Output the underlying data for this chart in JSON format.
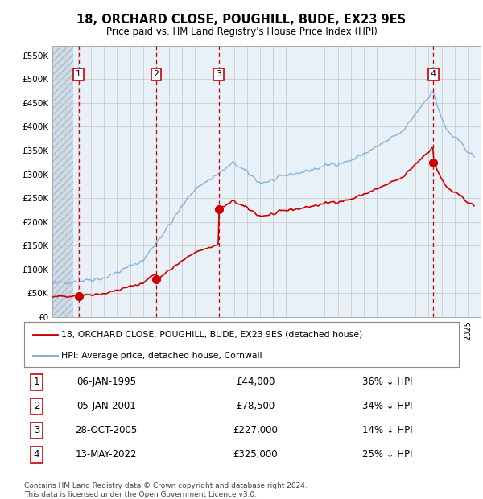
{
  "title": "18, ORCHARD CLOSE, POUGHILL, BUDE, EX23 9ES",
  "subtitle": "Price paid vs. HM Land Registry's House Price Index (HPI)",
  "ylabel_ticks": [
    "£0",
    "£50K",
    "£100K",
    "£150K",
    "£200K",
    "£250K",
    "£300K",
    "£350K",
    "£400K",
    "£450K",
    "£500K",
    "£550K"
  ],
  "ylim": [
    0,
    570000
  ],
  "xlim_start": 1993.0,
  "xlim_end": 2026.0,
  "sales": [
    {
      "num": 1,
      "date": "1995-01-06",
      "price": 44000,
      "pct": 36,
      "x": 1995.03
    },
    {
      "num": 2,
      "date": "2001-01-05",
      "price": 78500,
      "pct": 34,
      "x": 2001.01
    },
    {
      "num": 3,
      "date": "2005-10-28",
      "price": 227000,
      "pct": 14,
      "x": 2005.82
    },
    {
      "num": 4,
      "date": "2022-05-13",
      "price": 325000,
      "pct": 25,
      "x": 2022.37
    }
  ],
  "hpi_color": "#7aadd4",
  "sale_color": "#cc0000",
  "vline_color": "#cc0000",
  "grid_color": "#cccccc",
  "plot_bg": "#e8f0f8",
  "hatch_bg": "#d0dce8",
  "legend_label_sale": "18, ORCHARD CLOSE, POUGHILL, BUDE, EX23 9ES (detached house)",
  "legend_label_hpi": "HPI: Average price, detached house, Cornwall",
  "footer": "Contains HM Land Registry data © Crown copyright and database right 2024.\nThis data is licensed under the Open Government Licence v3.0.",
  "table_rows": [
    {
      "num": 1,
      "date": "06-JAN-1995",
      "price": "£44,000",
      "pct": "36% ↓ HPI"
    },
    {
      "num": 2,
      "date": "05-JAN-2001",
      "price": "£78,500",
      "pct": "34% ↓ HPI"
    },
    {
      "num": 3,
      "date": "28-OCT-2005",
      "price": "£227,000",
      "pct": "14% ↓ HPI"
    },
    {
      "num": 4,
      "date": "13-MAY-2022",
      "price": "£325,000",
      "pct": "25% ↓ HPI"
    }
  ]
}
